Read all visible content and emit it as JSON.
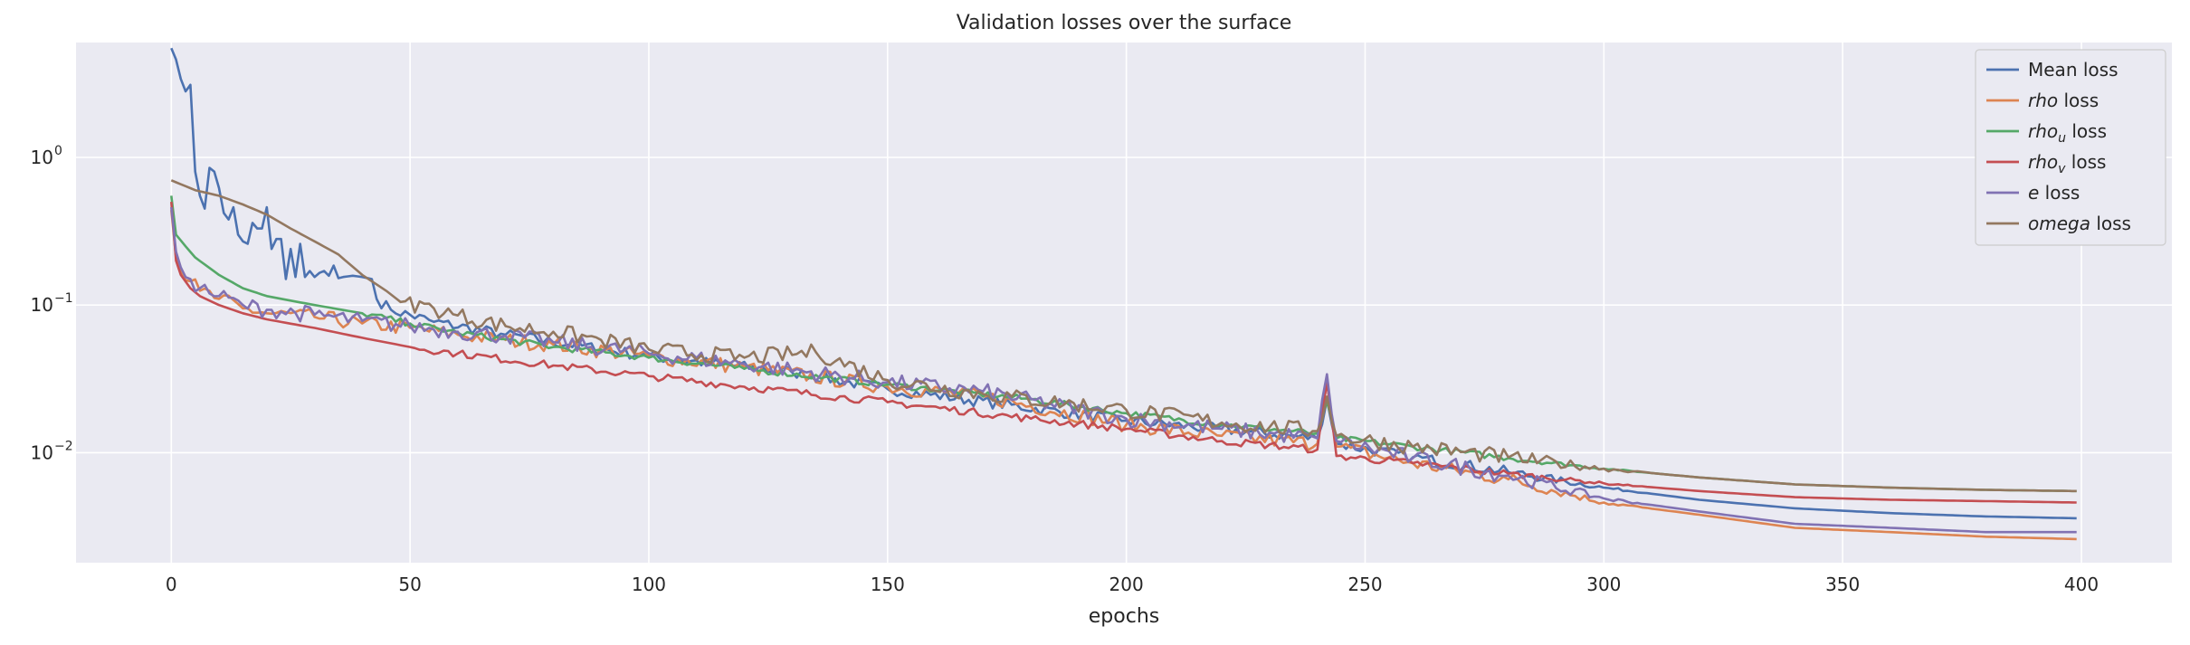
{
  "chart_data": {
    "type": "line",
    "title": "Validation losses over the surface",
    "xlabel": "epochs",
    "ylabel": "",
    "yscale": "log",
    "xlim": [
      -19.95,
      418.95
    ],
    "ylim": [
      0.0018,
      6.0
    ],
    "grid": true,
    "legend_position": "top-right",
    "x_ticks": [
      0,
      50,
      100,
      150,
      200,
      250,
      300,
      350,
      400
    ],
    "x_tick_labels": [
      "0",
      "50",
      "100",
      "150",
      "200",
      "250",
      "300",
      "350",
      "400"
    ],
    "y_ticks": [
      0.01,
      0.1,
      1
    ],
    "y_tick_labels": [
      {
        "base": "10",
        "exp": "−2"
      },
      {
        "base": "10",
        "exp": "−1"
      },
      {
        "base": "10",
        "exp": "0"
      }
    ],
    "x": {
      "start": 0,
      "end": 399,
      "step": 1
    },
    "series": [
      {
        "name_parts": [
          {
            "text": "Mean",
            "italic": false
          },
          {
            "text": " loss",
            "italic": false
          }
        ],
        "color": "#4c72b0",
        "anchors": [
          [
            0,
            5.5
          ],
          [
            1,
            4.6
          ],
          [
            2,
            3.4
          ],
          [
            3,
            2.8
          ],
          [
            4,
            3.1
          ],
          [
            5,
            0.8
          ],
          [
            6,
            0.55
          ],
          [
            7,
            0.45
          ],
          [
            8,
            0.85
          ],
          [
            9,
            0.8
          ],
          [
            10,
            0.62
          ],
          [
            11,
            0.42
          ],
          [
            12,
            0.38
          ],
          [
            13,
            0.46
          ],
          [
            14,
            0.3
          ],
          [
            15,
            0.27
          ],
          [
            16,
            0.26
          ],
          [
            17,
            0.36
          ],
          [
            18,
            0.33
          ],
          [
            19,
            0.33
          ],
          [
            20,
            0.46
          ],
          [
            21,
            0.24
          ],
          [
            22,
            0.28
          ],
          [
            23,
            0.28
          ],
          [
            24,
            0.15
          ],
          [
            25,
            0.24
          ],
          [
            26,
            0.155
          ],
          [
            27,
            0.26
          ],
          [
            28,
            0.155
          ],
          [
            29,
            0.17
          ],
          [
            30,
            0.155
          ],
          [
            31,
            0.165
          ],
          [
            32,
            0.17
          ],
          [
            33,
            0.158
          ],
          [
            34,
            0.185
          ],
          [
            35,
            0.152
          ],
          [
            36,
            0.155
          ],
          [
            38,
            0.158
          ],
          [
            40,
            0.155
          ],
          [
            42,
            0.15
          ],
          [
            43,
            0.11
          ],
          [
            46,
            0.093
          ],
          [
            55,
            0.077
          ],
          [
            70,
            0.063
          ],
          [
            100,
            0.045
          ],
          [
            130,
            0.035
          ],
          [
            150,
            0.027
          ],
          [
            200,
            0.0165
          ],
          [
            240,
            0.0125
          ],
          [
            242,
            0.023
          ],
          [
            244,
            0.0115
          ],
          [
            260,
            0.0093
          ],
          [
            280,
            0.0074
          ],
          [
            300,
            0.0058
          ],
          [
            320,
            0.0048
          ],
          [
            340,
            0.0042
          ],
          [
            360,
            0.0039
          ],
          [
            380,
            0.0037
          ],
          [
            399,
            0.0036
          ]
        ],
        "noise": 0.09,
        "noise_start": 43
      },
      {
        "name_parts": [
          {
            "text": "rho",
            "italic": true
          },
          {
            "text": " loss",
            "italic": false
          }
        ],
        "color": "#dd8452",
        "anchors": [
          [
            0,
            0.44
          ],
          [
            1,
            0.21
          ],
          [
            2,
            0.17
          ],
          [
            4,
            0.145
          ],
          [
            6,
            0.125
          ],
          [
            10,
            0.11
          ],
          [
            15,
            0.095
          ],
          [
            20,
            0.088
          ],
          [
            30,
            0.083
          ],
          [
            40,
            0.075
          ],
          [
            50,
            0.07
          ],
          [
            60,
            0.063
          ],
          [
            70,
            0.058
          ],
          [
            80,
            0.054
          ],
          [
            100,
            0.045
          ],
          [
            120,
            0.038
          ],
          [
            150,
            0.028
          ],
          [
            170,
            0.024
          ],
          [
            200,
            0.0155
          ],
          [
            220,
            0.013
          ],
          [
            240,
            0.0115
          ],
          [
            242,
            0.031
          ],
          [
            244,
            0.011
          ],
          [
            260,
            0.0085
          ],
          [
            280,
            0.0066
          ],
          [
            300,
            0.0046
          ],
          [
            320,
            0.0038
          ],
          [
            340,
            0.0031
          ],
          [
            360,
            0.0029
          ],
          [
            380,
            0.0027
          ],
          [
            399,
            0.0026
          ]
        ],
        "noise": 0.12,
        "noise_start": 3
      },
      {
        "name_parts": [
          {
            "text": "rho",
            "italic": true
          },
          {
            "text": "u",
            "italic": true,
            "sub": true
          },
          {
            "text": " loss",
            "italic": false
          }
        ],
        "color": "#55a868",
        "anchors": [
          [
            0,
            0.55
          ],
          [
            1,
            0.3
          ],
          [
            3,
            0.25
          ],
          [
            5,
            0.21
          ],
          [
            10,
            0.16
          ],
          [
            15,
            0.13
          ],
          [
            20,
            0.115
          ],
          [
            30,
            0.1
          ],
          [
            40,
            0.088
          ],
          [
            50,
            0.075
          ],
          [
            60,
            0.065
          ],
          [
            80,
            0.052
          ],
          [
            100,
            0.044
          ],
          [
            120,
            0.037
          ],
          [
            150,
            0.029
          ],
          [
            180,
            0.023
          ],
          [
            200,
            0.0185
          ],
          [
            220,
            0.0155
          ],
          [
            240,
            0.0135
          ],
          [
            242,
            0.022
          ],
          [
            244,
            0.0125
          ],
          [
            260,
            0.011
          ],
          [
            280,
            0.0092
          ],
          [
            300,
            0.0078
          ],
          [
            320,
            0.0068
          ],
          [
            340,
            0.0061
          ],
          [
            360,
            0.0058
          ],
          [
            380,
            0.0056
          ],
          [
            399,
            0.0055
          ]
        ],
        "noise": 0.05,
        "noise_start": 40
      },
      {
        "name_parts": [
          {
            "text": "rho",
            "italic": true
          },
          {
            "text": "v",
            "italic": true,
            "sub": true
          },
          {
            "text": " loss",
            "italic": false
          }
        ],
        "color": "#c44e52",
        "anchors": [
          [
            0,
            0.5
          ],
          [
            1,
            0.2
          ],
          [
            2,
            0.16
          ],
          [
            4,
            0.13
          ],
          [
            6,
            0.115
          ],
          [
            10,
            0.1
          ],
          [
            15,
            0.088
          ],
          [
            20,
            0.08
          ],
          [
            30,
            0.07
          ],
          [
            40,
            0.06
          ],
          [
            50,
            0.052
          ],
          [
            60,
            0.047
          ],
          [
            80,
            0.039
          ],
          [
            100,
            0.033
          ],
          [
            120,
            0.028
          ],
          [
            150,
            0.022
          ],
          [
            180,
            0.017
          ],
          [
            200,
            0.0145
          ],
          [
            220,
            0.012
          ],
          [
            240,
            0.0105
          ],
          [
            242,
            0.03
          ],
          [
            244,
            0.0095
          ],
          [
            260,
            0.0085
          ],
          [
            280,
            0.0072
          ],
          [
            300,
            0.0062
          ],
          [
            320,
            0.0055
          ],
          [
            340,
            0.005
          ],
          [
            360,
            0.0048
          ],
          [
            380,
            0.0047
          ],
          [
            399,
            0.0046
          ]
        ],
        "noise": 0.06,
        "noise_start": 50
      },
      {
        "name_parts": [
          {
            "text": "e",
            "italic": true
          },
          {
            "text": " loss",
            "italic": false
          }
        ],
        "color": "#8172b3",
        "anchors": [
          [
            0,
            0.46
          ],
          [
            1,
            0.23
          ],
          [
            2,
            0.18
          ],
          [
            4,
            0.15
          ],
          [
            6,
            0.13
          ],
          [
            10,
            0.115
          ],
          [
            15,
            0.1
          ],
          [
            20,
            0.093
          ],
          [
            30,
            0.086
          ],
          [
            40,
            0.078
          ],
          [
            50,
            0.072
          ],
          [
            60,
            0.066
          ],
          [
            70,
            0.062
          ],
          [
            80,
            0.056
          ],
          [
            100,
            0.047
          ],
          [
            120,
            0.04
          ],
          [
            150,
            0.03
          ],
          [
            170,
            0.026
          ],
          [
            200,
            0.017
          ],
          [
            220,
            0.0145
          ],
          [
            240,
            0.0125
          ],
          [
            242,
            0.034
          ],
          [
            244,
            0.012
          ],
          [
            260,
            0.0092
          ],
          [
            280,
            0.007
          ],
          [
            300,
            0.0049
          ],
          [
            320,
            0.004
          ],
          [
            340,
            0.0033
          ],
          [
            360,
            0.0031
          ],
          [
            380,
            0.0029
          ],
          [
            399,
            0.0029
          ]
        ],
        "noise": 0.13,
        "noise_start": 3
      },
      {
        "name_parts": [
          {
            "text": "omega",
            "italic": true
          },
          {
            "text": " loss",
            "italic": false
          }
        ],
        "color": "#937860",
        "anchors": [
          [
            0,
            0.7
          ],
          [
            5,
            0.6
          ],
          [
            10,
            0.55
          ],
          [
            15,
            0.48
          ],
          [
            20,
            0.41
          ],
          [
            25,
            0.33
          ],
          [
            30,
            0.27
          ],
          [
            35,
            0.22
          ],
          [
            40,
            0.16
          ],
          [
            45,
            0.125
          ],
          [
            48,
            0.105
          ],
          [
            55,
            0.095
          ],
          [
            60,
            0.085
          ],
          [
            70,
            0.072
          ],
          [
            80,
            0.066
          ],
          [
            90,
            0.058
          ],
          [
            100,
            0.05
          ],
          [
            120,
            0.044
          ],
          [
            135,
            0.048
          ],
          [
            150,
            0.031
          ],
          [
            170,
            0.025
          ],
          [
            200,
            0.0195
          ],
          [
            220,
            0.016
          ],
          [
            240,
            0.014
          ],
          [
            242,
            0.024
          ],
          [
            244,
            0.013
          ],
          [
            260,
            0.011
          ],
          [
            280,
            0.0093
          ],
          [
            300,
            0.0078
          ],
          [
            320,
            0.0068
          ],
          [
            340,
            0.0061
          ],
          [
            360,
            0.0058
          ],
          [
            380,
            0.0056
          ],
          [
            399,
            0.0055
          ]
        ],
        "noise": 0.13,
        "noise_start": 48
      }
    ]
  }
}
